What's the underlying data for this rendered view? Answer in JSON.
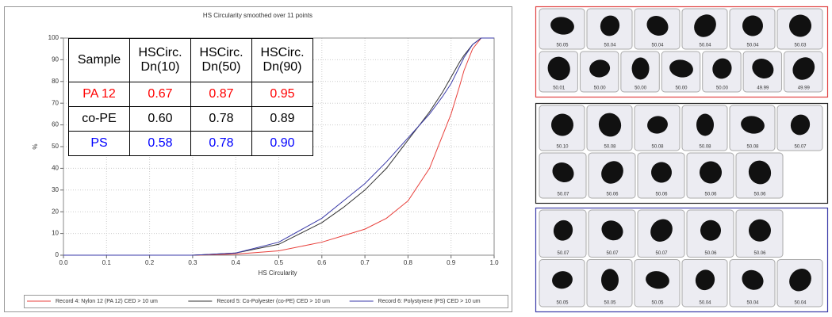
{
  "chart_data": {
    "type": "line",
    "title": "HS Circularity smoothed over 11 points",
    "x_label": "HS Circularity",
    "y_label": "%",
    "x": [
      0.0,
      0.3,
      0.4,
      0.5,
      0.6,
      0.65,
      0.7,
      0.75,
      0.8,
      0.85,
      0.88,
      0.9,
      0.92,
      0.93,
      0.95,
      0.97,
      1.0
    ],
    "series": [
      {
        "name": "Record 4: Nylon 12 (PA 12) CED > 10 um",
        "color": "#e8413c",
        "values": [
          0,
          0,
          0.5,
          2,
          6,
          9,
          12,
          17,
          25,
          40,
          55,
          65,
          78,
          85,
          95,
          100,
          100
        ]
      },
      {
        "name": "Record 5: Co-Polyester (co-PE) CED > 10 um",
        "color": "#333333",
        "values": [
          0,
          0,
          1,
          5,
          15,
          22,
          30,
          40,
          53,
          66,
          75,
          82,
          89,
          92,
          97,
          100,
          100
        ]
      },
      {
        "name": "Record 6: Polystyrene (PS) CED > 10 um",
        "color": "#3a3aa8",
        "values": [
          0,
          0,
          1,
          6,
          17,
          25,
          33,
          43,
          54,
          65,
          73,
          79,
          87,
          91,
          97,
          100,
          100
        ]
      }
    ],
    "xlim": [
      0,
      1
    ],
    "ylim": [
      0,
      100
    ],
    "xticks": [
      {
        "value": 0,
        "label": "0.0"
      },
      0.1,
      0.2,
      0.3,
      0.4,
      0.5,
      0.6,
      0.7,
      0.8,
      0.9,
      {
        "value": 1,
        "label": "1.0"
      }
    ],
    "yticks": [
      0,
      10,
      20,
      30,
      40,
      50,
      60,
      70,
      80,
      90,
      100
    ],
    "grid": true,
    "legend": "bottom"
  },
  "table": {
    "header": [
      "Sample",
      "HSCirc. Dn(10)",
      "HSCirc. Dn(50)",
      "HSCirc. Dn(90)"
    ],
    "rows": [
      {
        "color": "#ff0000",
        "cells": [
          "PA 12",
          "0.67",
          "0.87",
          "0.95"
        ]
      },
      {
        "color": "#000000",
        "cells": [
          "co-PE",
          "0.60",
          "0.78",
          "0.89"
        ]
      },
      {
        "color": "#0000ff",
        "cells": [
          "PS",
          "0.58",
          "0.78",
          "0.90"
        ]
      }
    ]
  },
  "particles": [
    {
      "color": "#e04040",
      "rows": [
        [
          "50.05",
          "50.04",
          "50.04",
          "50.04",
          "50.04",
          "50.03"
        ],
        [
          "50.01",
          "50.00",
          "50.00",
          "50.00",
          "50.00",
          "49.99",
          "49.99"
        ]
      ]
    },
    {
      "color": "#222222",
      "rows": [
        [
          "50.10",
          "50.08",
          "50.08",
          "50.08",
          "50.08",
          "50.07"
        ],
        [
          "50.07",
          "50.06",
          "50.06",
          "50.06",
          "50.06"
        ]
      ]
    },
    {
      "color": "#3a3aa8",
      "rows": [
        [
          "50.07",
          "50.07",
          "50.07",
          "50.06",
          "50.06"
        ],
        [
          "50.05",
          "50.05",
          "50.05",
          "50.04",
          "50.04",
          "50.04"
        ]
      ]
    }
  ]
}
